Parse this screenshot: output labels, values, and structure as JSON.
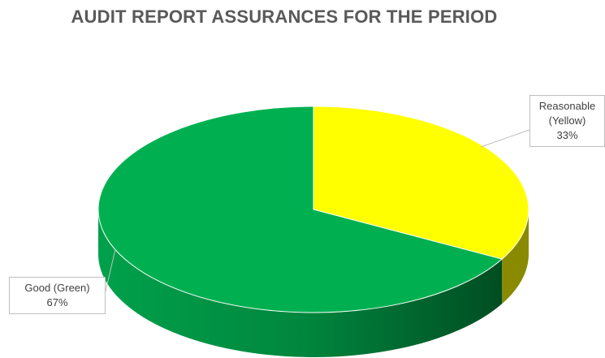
{
  "chart_data": {
    "type": "pie",
    "title": "AUDIT REPORT ASSURANCES FOR THE PERIOD",
    "style": "3d",
    "slices": [
      {
        "name": "Reasonable (Yellow)",
        "value": 33,
        "percent_label": "33%",
        "color": "#ffff00",
        "side_color": "#8a8a00",
        "label_lines": [
          "Reasonable",
          "(Yellow)"
        ]
      },
      {
        "name": "Good (Green)",
        "value": 67,
        "percent_label": "67%",
        "color": "#00b050",
        "side_color": "#007a3a",
        "label_lines": [
          "Good (Green)"
        ]
      }
    ],
    "legend": "none",
    "data_labels": "callout"
  }
}
